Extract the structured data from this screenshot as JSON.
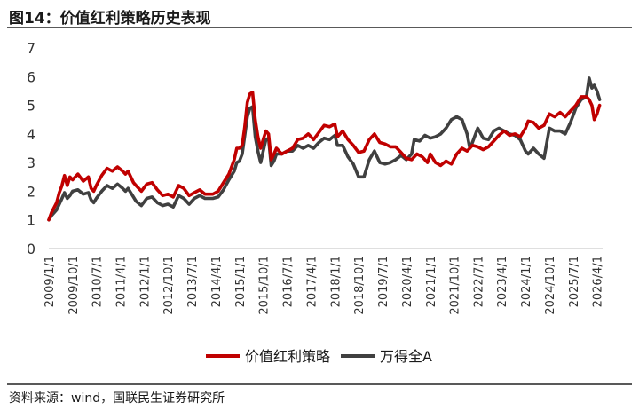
{
  "header": {
    "title": "图14：价值红利策略历史表现"
  },
  "footer": {
    "source": "资料来源：wind，国联民生证券研究所"
  },
  "colors": {
    "series1": "#c00000",
    "series2": "#404040",
    "axis": "#bfbfbf"
  },
  "chart_data": {
    "type": "line",
    "title": "",
    "xlabel": "",
    "ylabel": "",
    "ylim": [
      0,
      7
    ],
    "yticks": [
      "0",
      "1",
      "2",
      "3",
      "4",
      "5",
      "6",
      "7"
    ],
    "xlim": [
      "2009-01-01",
      "2026-06-15"
    ],
    "xticks": [
      "2009/1/1",
      "2009/10/1",
      "2010/7/1",
      "2011/4/1",
      "2012/1/1",
      "2012/10/1",
      "2013/7/1",
      "2014/4/1",
      "2015/1/1",
      "2015/10/1",
      "2016/7/1",
      "2017/4/1",
      "2018/1/1",
      "2018/10/1",
      "2019/7/1",
      "2020/4/1",
      "2021/1/1",
      "2021/10/1",
      "2022/7/1",
      "2023/4/1",
      "2024/1/1",
      "2024/10/1",
      "2025/7/1",
      "2026/4/1"
    ],
    "legend_position": "bottom-center",
    "grid": false,
    "series": [
      {
        "name": "价值红利策略",
        "color": "#c00000",
        "points": [
          [
            "2009-01-01",
            1.0
          ],
          [
            "2009-02-01",
            1.25
          ],
          [
            "2009-04-01",
            1.6
          ],
          [
            "2009-05-01",
            1.95
          ],
          [
            "2009-06-01",
            2.2
          ],
          [
            "2009-07-01",
            2.55
          ],
          [
            "2009-08-01",
            2.2
          ],
          [
            "2009-09-01",
            2.5
          ],
          [
            "2009-10-01",
            2.4
          ],
          [
            "2009-12-01",
            2.6
          ],
          [
            "2010-02-01",
            2.35
          ],
          [
            "2010-04-01",
            2.5
          ],
          [
            "2010-05-01",
            2.1
          ],
          [
            "2010-06-01",
            2.0
          ],
          [
            "2010-07-01",
            2.2
          ],
          [
            "2010-09-01",
            2.55
          ],
          [
            "2010-11-01",
            2.8
          ],
          [
            "2011-01-01",
            2.7
          ],
          [
            "2011-03-01",
            2.85
          ],
          [
            "2011-05-01",
            2.7
          ],
          [
            "2011-06-01",
            2.6
          ],
          [
            "2011-07-01",
            2.7
          ],
          [
            "2011-09-01",
            2.3
          ],
          [
            "2011-10-01",
            2.2
          ],
          [
            "2011-12-01",
            2.0
          ],
          [
            "2012-02-01",
            2.25
          ],
          [
            "2012-04-01",
            2.3
          ],
          [
            "2012-06-01",
            2.05
          ],
          [
            "2012-08-01",
            1.85
          ],
          [
            "2012-10-01",
            1.9
          ],
          [
            "2012-12-01",
            1.8
          ],
          [
            "2013-02-01",
            2.2
          ],
          [
            "2013-04-01",
            2.1
          ],
          [
            "2013-06-01",
            1.85
          ],
          [
            "2013-08-01",
            1.95
          ],
          [
            "2013-10-01",
            2.05
          ],
          [
            "2013-12-01",
            1.9
          ],
          [
            "2014-03-01",
            1.9
          ],
          [
            "2014-05-01",
            2.0
          ],
          [
            "2014-07-01",
            2.3
          ],
          [
            "2014-09-01",
            2.6
          ],
          [
            "2014-11-01",
            3.1
          ],
          [
            "2014-12-01",
            3.5
          ],
          [
            "2015-01-01",
            3.5
          ],
          [
            "2015-02-01",
            3.6
          ],
          [
            "2015-03-01",
            4.2
          ],
          [
            "2015-04-01",
            5.1
          ],
          [
            "2015-05-01",
            5.4
          ],
          [
            "2015-06-01",
            5.45
          ],
          [
            "2015-07-01",
            4.5
          ],
          [
            "2015-08-01",
            3.9
          ],
          [
            "2015-09-01",
            3.5
          ],
          [
            "2015-10-01",
            3.8
          ],
          [
            "2015-11-01",
            4.1
          ],
          [
            "2015-12-01",
            4.0
          ],
          [
            "2016-01-01",
            3.1
          ],
          [
            "2016-02-01",
            3.3
          ],
          [
            "2016-03-01",
            3.5
          ],
          [
            "2016-05-01",
            3.3
          ],
          [
            "2016-07-01",
            3.4
          ],
          [
            "2016-09-01",
            3.5
          ],
          [
            "2016-11-01",
            3.8
          ],
          [
            "2017-01-01",
            3.85
          ],
          [
            "2017-03-01",
            4.0
          ],
          [
            "2017-05-01",
            3.8
          ],
          [
            "2017-07-01",
            4.05
          ],
          [
            "2017-09-01",
            4.3
          ],
          [
            "2017-11-01",
            4.25
          ],
          [
            "2018-01-01",
            4.35
          ],
          [
            "2018-02-01",
            3.9
          ],
          [
            "2018-04-01",
            4.1
          ],
          [
            "2018-06-01",
            3.8
          ],
          [
            "2018-08-01",
            3.6
          ],
          [
            "2018-10-01",
            3.35
          ],
          [
            "2018-12-01",
            3.4
          ],
          [
            "2019-02-01",
            3.8
          ],
          [
            "2019-04-01",
            4.0
          ],
          [
            "2019-06-01",
            3.7
          ],
          [
            "2019-08-01",
            3.65
          ],
          [
            "2019-10-01",
            3.55
          ],
          [
            "2019-12-01",
            3.55
          ],
          [
            "2020-02-01",
            3.35
          ],
          [
            "2020-04-01",
            3.15
          ],
          [
            "2020-06-01",
            3.1
          ],
          [
            "2020-08-01",
            3.3
          ],
          [
            "2020-10-01",
            3.2
          ],
          [
            "2020-12-01",
            3.0
          ],
          [
            "2021-01-01",
            3.3
          ],
          [
            "2021-03-01",
            3.0
          ],
          [
            "2021-05-01",
            2.9
          ],
          [
            "2021-07-01",
            3.05
          ],
          [
            "2021-09-01",
            2.95
          ],
          [
            "2021-11-01",
            3.3
          ],
          [
            "2022-01-01",
            3.5
          ],
          [
            "2022-03-01",
            3.4
          ],
          [
            "2022-05-01",
            3.6
          ],
          [
            "2022-07-01",
            3.55
          ],
          [
            "2022-09-01",
            3.45
          ],
          [
            "2022-11-01",
            3.55
          ],
          [
            "2023-01-01",
            3.75
          ],
          [
            "2023-03-01",
            3.95
          ],
          [
            "2023-05-01",
            4.1
          ],
          [
            "2023-07-01",
            3.95
          ],
          [
            "2023-09-01",
            4.0
          ],
          [
            "2023-11-01",
            3.9
          ],
          [
            "2024-01-01",
            4.2
          ],
          [
            "2024-02-01",
            4.45
          ],
          [
            "2024-04-01",
            4.4
          ],
          [
            "2024-06-01",
            4.2
          ],
          [
            "2024-08-01",
            4.3
          ],
          [
            "2024-10-01",
            4.7
          ],
          [
            "2024-12-01",
            4.6
          ],
          [
            "2025-02-01",
            4.75
          ],
          [
            "2025-04-01",
            4.6
          ],
          [
            "2025-06-01",
            4.8
          ],
          [
            "2025-08-01",
            5.0
          ],
          [
            "2025-10-01",
            5.3
          ],
          [
            "2025-12-01",
            5.3
          ],
          [
            "2026-01-01",
            5.2
          ],
          [
            "2026-02-01",
            5.0
          ],
          [
            "2026-03-01",
            4.5
          ],
          [
            "2026-04-01",
            4.7
          ],
          [
            "2026-05-01",
            5.0
          ]
        ]
      },
      {
        "name": "万得全A",
        "color": "#404040",
        "points": [
          [
            "2009-01-01",
            1.0
          ],
          [
            "2009-02-01",
            1.15
          ],
          [
            "2009-04-01",
            1.35
          ],
          [
            "2009-05-01",
            1.55
          ],
          [
            "2009-06-01",
            1.75
          ],
          [
            "2009-07-01",
            1.95
          ],
          [
            "2009-08-01",
            1.75
          ],
          [
            "2009-09-01",
            1.85
          ],
          [
            "2009-10-01",
            2.0
          ],
          [
            "2009-12-01",
            2.05
          ],
          [
            "2010-02-01",
            1.9
          ],
          [
            "2010-04-01",
            1.95
          ],
          [
            "2010-05-01",
            1.7
          ],
          [
            "2010-06-01",
            1.6
          ],
          [
            "2010-07-01",
            1.75
          ],
          [
            "2010-09-01",
            2.0
          ],
          [
            "2010-11-01",
            2.2
          ],
          [
            "2011-01-01",
            2.1
          ],
          [
            "2011-03-01",
            2.25
          ],
          [
            "2011-05-01",
            2.1
          ],
          [
            "2011-06-01",
            2.0
          ],
          [
            "2011-07-01",
            2.1
          ],
          [
            "2011-09-01",
            1.8
          ],
          [
            "2011-10-01",
            1.65
          ],
          [
            "2011-12-01",
            1.5
          ],
          [
            "2012-02-01",
            1.75
          ],
          [
            "2012-04-01",
            1.8
          ],
          [
            "2012-06-01",
            1.6
          ],
          [
            "2012-08-01",
            1.5
          ],
          [
            "2012-10-01",
            1.55
          ],
          [
            "2012-12-01",
            1.45
          ],
          [
            "2013-02-01",
            1.85
          ],
          [
            "2013-04-01",
            1.75
          ],
          [
            "2013-06-01",
            1.55
          ],
          [
            "2013-08-01",
            1.75
          ],
          [
            "2013-10-01",
            1.85
          ],
          [
            "2013-12-01",
            1.75
          ],
          [
            "2014-03-01",
            1.75
          ],
          [
            "2014-05-01",
            1.8
          ],
          [
            "2014-07-01",
            2.05
          ],
          [
            "2014-09-01",
            2.4
          ],
          [
            "2014-11-01",
            2.7
          ],
          [
            "2014-12-01",
            3.0
          ],
          [
            "2015-01-01",
            3.05
          ],
          [
            "2015-02-01",
            3.3
          ],
          [
            "2015-03-01",
            3.9
          ],
          [
            "2015-04-01",
            4.6
          ],
          [
            "2015-05-01",
            4.9
          ],
          [
            "2015-06-01",
            4.95
          ],
          [
            "2015-07-01",
            3.9
          ],
          [
            "2015-08-01",
            3.4
          ],
          [
            "2015-09-01",
            3.0
          ],
          [
            "2015-10-01",
            3.4
          ],
          [
            "2015-11-01",
            3.8
          ],
          [
            "2015-12-01",
            3.85
          ],
          [
            "2016-01-01",
            2.9
          ],
          [
            "2016-02-01",
            3.05
          ],
          [
            "2016-03-01",
            3.3
          ],
          [
            "2016-05-01",
            3.3
          ],
          [
            "2016-07-01",
            3.4
          ],
          [
            "2016-09-01",
            3.4
          ],
          [
            "2016-11-01",
            3.6
          ],
          [
            "2017-01-01",
            3.5
          ],
          [
            "2017-03-01",
            3.6
          ],
          [
            "2017-05-01",
            3.5
          ],
          [
            "2017-07-01",
            3.7
          ],
          [
            "2017-09-01",
            3.85
          ],
          [
            "2017-11-01",
            3.8
          ],
          [
            "2018-01-01",
            3.95
          ],
          [
            "2018-02-01",
            3.6
          ],
          [
            "2018-04-01",
            3.6
          ],
          [
            "2018-06-01",
            3.2
          ],
          [
            "2018-08-01",
            2.95
          ],
          [
            "2018-10-01",
            2.5
          ],
          [
            "2018-12-01",
            2.5
          ],
          [
            "2019-02-01",
            3.1
          ],
          [
            "2019-04-01",
            3.4
          ],
          [
            "2019-06-01",
            3.0
          ],
          [
            "2019-08-01",
            2.95
          ],
          [
            "2019-10-01",
            3.0
          ],
          [
            "2019-12-01",
            3.1
          ],
          [
            "2020-02-01",
            3.25
          ],
          [
            "2020-04-01",
            3.1
          ],
          [
            "2020-06-01",
            3.3
          ],
          [
            "2020-07-01",
            3.8
          ],
          [
            "2020-09-01",
            3.75
          ],
          [
            "2020-11-01",
            3.95
          ],
          [
            "2021-01-01",
            3.85
          ],
          [
            "2021-03-01",
            3.9
          ],
          [
            "2021-05-01",
            4.0
          ],
          [
            "2021-07-01",
            4.2
          ],
          [
            "2021-09-01",
            4.5
          ],
          [
            "2021-11-01",
            4.6
          ],
          [
            "2022-01-01",
            4.5
          ],
          [
            "2022-03-01",
            4.0
          ],
          [
            "2022-04-01",
            3.5
          ],
          [
            "2022-05-01",
            3.7
          ],
          [
            "2022-07-01",
            4.2
          ],
          [
            "2022-09-01",
            3.85
          ],
          [
            "2022-11-01",
            3.8
          ],
          [
            "2023-01-01",
            4.1
          ],
          [
            "2023-03-01",
            4.2
          ],
          [
            "2023-05-01",
            4.1
          ],
          [
            "2023-07-01",
            4.0
          ],
          [
            "2023-09-01",
            3.95
          ],
          [
            "2023-11-01",
            3.8
          ],
          [
            "2024-01-01",
            3.4
          ],
          [
            "2024-02-01",
            3.3
          ],
          [
            "2024-04-01",
            3.5
          ],
          [
            "2024-06-01",
            3.3
          ],
          [
            "2024-08-01",
            3.15
          ],
          [
            "2024-10-01",
            4.2
          ],
          [
            "2024-12-01",
            4.1
          ],
          [
            "2025-02-01",
            4.1
          ],
          [
            "2025-04-01",
            4.0
          ],
          [
            "2025-06-01",
            4.4
          ],
          [
            "2025-08-01",
            4.9
          ],
          [
            "2025-10-01",
            5.2
          ],
          [
            "2025-12-01",
            5.3
          ],
          [
            "2026-01-01",
            5.95
          ],
          [
            "2026-02-01",
            5.6
          ],
          [
            "2026-03-01",
            5.7
          ],
          [
            "2026-04-01",
            5.5
          ],
          [
            "2026-05-01",
            5.2
          ]
        ]
      }
    ]
  }
}
